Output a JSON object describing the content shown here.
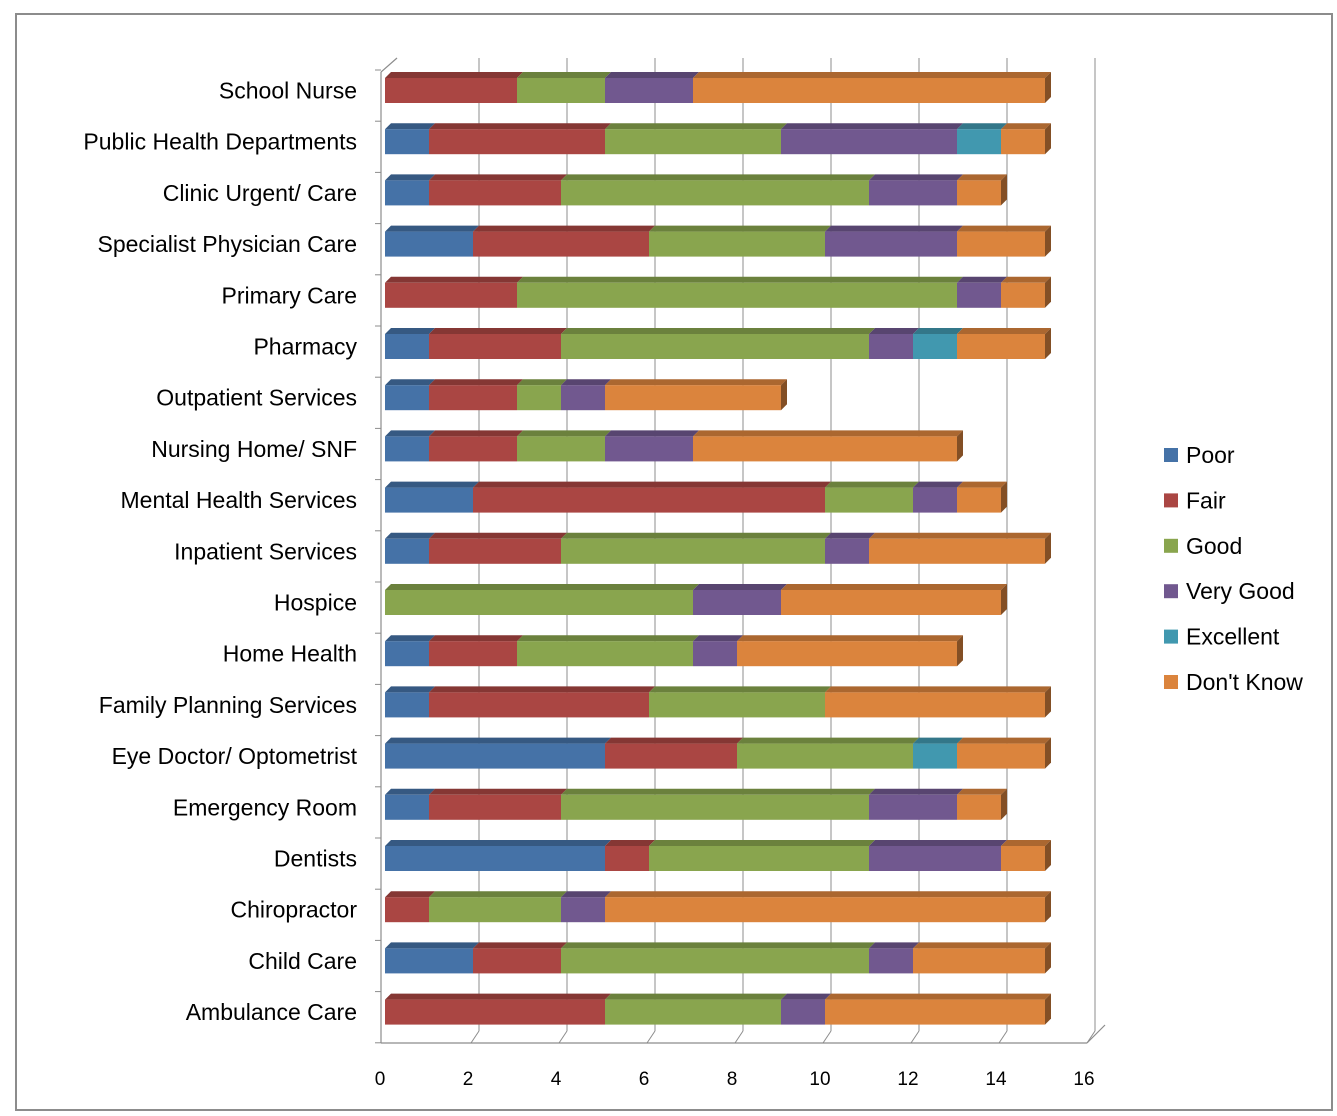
{
  "chart_data": {
    "type": "bar",
    "orientation": "horizontal",
    "stacked": true,
    "categories": [
      "School Nurse",
      "Public Health Departments",
      "Clinic Urgent/ Care",
      "Specialist Physician Care",
      "Primary Care",
      "Pharmacy",
      "Outpatient Services",
      "Nursing Home/ SNF",
      "Mental Health Services",
      "Inpatient Services",
      "Hospice",
      "Home Health",
      "Family Planning Services",
      "Eye Doctor/ Optometrist",
      "Emergency Room",
      "Dentists",
      "Chiropractor",
      "Child Care",
      "Ambulance Care"
    ],
    "series": [
      {
        "name": "Poor",
        "color": "#4572a7",
        "values": [
          0,
          1,
          1,
          2,
          0,
          1,
          1,
          1,
          2,
          1,
          0,
          1,
          1,
          5,
          1,
          5,
          0,
          2,
          0
        ]
      },
      {
        "name": "Fair",
        "color": "#aa4643",
        "values": [
          3,
          4,
          3,
          4,
          3,
          3,
          2,
          2,
          8,
          3,
          0,
          2,
          5,
          3,
          3,
          1,
          1,
          2,
          5
        ]
      },
      {
        "name": "Good",
        "color": "#89a54e",
        "values": [
          2,
          4,
          7,
          4,
          10,
          7,
          1,
          2,
          2,
          6,
          7,
          4,
          4,
          4,
          7,
          5,
          3,
          7,
          4
        ]
      },
      {
        "name": "Very Good",
        "color": "#71588f",
        "values": [
          2,
          4,
          2,
          3,
          1,
          1,
          1,
          2,
          1,
          1,
          2,
          1,
          0,
          0,
          2,
          3,
          1,
          1,
          1
        ]
      },
      {
        "name": "Excellent",
        "color": "#4198af",
        "values": [
          0,
          1,
          0,
          0,
          0,
          1,
          0,
          0,
          0,
          0,
          0,
          0,
          0,
          1,
          0,
          0,
          0,
          0,
          0
        ]
      },
      {
        "name": "Don't Know",
        "color": "#db843d",
        "values": [
          8,
          1,
          1,
          2,
          1,
          2,
          4,
          6,
          1,
          4,
          5,
          5,
          5,
          2,
          1,
          1,
          10,
          3,
          5
        ]
      }
    ],
    "xlim": [
      0,
      16
    ],
    "xticks": [
      0,
      2,
      4,
      6,
      8,
      10,
      12,
      14,
      16
    ],
    "grid": true,
    "legend_position": "right",
    "style": "3d"
  }
}
